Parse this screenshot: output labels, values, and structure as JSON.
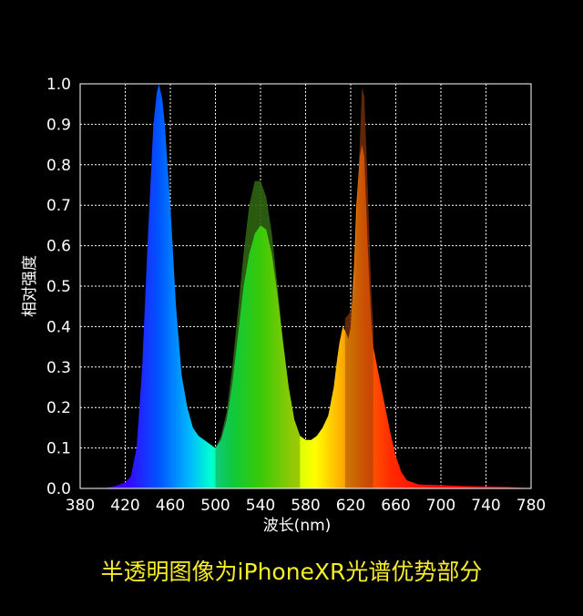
{
  "chart_data": {
    "type": "area",
    "title": "",
    "xlabel": "波长(nm)",
    "ylabel": "相对强度",
    "xlim": [
      380,
      780
    ],
    "ylim": [
      0.0,
      1.0
    ],
    "x_ticks": [
      "380",
      "420",
      "460",
      "500",
      "540",
      "580",
      "620",
      "660",
      "700",
      "740",
      "780"
    ],
    "y_ticks": [
      "0.0",
      "0.1",
      "0.2",
      "0.3",
      "0.4",
      "0.5",
      "0.6",
      "0.7",
      "0.8",
      "0.9",
      "1.0"
    ],
    "grid": true,
    "series": [
      {
        "x": [
          380,
          400,
          410,
          420,
          425,
          430,
          435,
          440,
          445,
          448,
          450,
          453,
          455,
          460,
          465,
          470,
          475,
          480,
          485,
          490,
          495,
          500,
          505,
          510,
          515,
          520,
          525,
          530,
          535,
          540,
          545,
          550,
          555,
          560,
          565,
          570,
          575,
          580,
          585,
          590,
          595,
          600,
          605,
          608,
          610,
          613,
          615,
          618,
          620,
          623,
          625,
          628,
          630,
          632,
          635,
          638,
          640,
          645,
          650,
          655,
          660,
          665,
          670,
          680,
          700,
          720,
          740,
          760,
          780
        ],
        "y": [
          0.0,
          0.0,
          0.005,
          0.015,
          0.03,
          0.1,
          0.3,
          0.62,
          0.9,
          0.98,
          1.0,
          0.96,
          0.9,
          0.7,
          0.45,
          0.28,
          0.2,
          0.15,
          0.13,
          0.12,
          0.11,
          0.1,
          0.12,
          0.17,
          0.26,
          0.38,
          0.5,
          0.58,
          0.63,
          0.65,
          0.64,
          0.58,
          0.48,
          0.36,
          0.25,
          0.17,
          0.13,
          0.12,
          0.12,
          0.13,
          0.15,
          0.18,
          0.25,
          0.32,
          0.36,
          0.4,
          0.39,
          0.37,
          0.4,
          0.55,
          0.7,
          0.82,
          0.85,
          0.82,
          0.6,
          0.42,
          0.35,
          0.28,
          0.21,
          0.14,
          0.08,
          0.04,
          0.02,
          0.01,
          0.008,
          0.006,
          0.005,
          0.004,
          0.0
        ]
      },
      {
        "x": [
          500,
          505,
          510,
          515,
          520,
          525,
          530,
          535,
          540,
          545,
          550,
          555,
          560,
          565,
          570,
          575
        ],
        "y": [
          0.1,
          0.13,
          0.19,
          0.3,
          0.44,
          0.58,
          0.7,
          0.76,
          0.76,
          0.72,
          0.63,
          0.5,
          0.36,
          0.25,
          0.17,
          0.13
        ]
      },
      {
        "x": [
          615,
          618,
          620,
          623,
          625,
          628,
          630,
          632,
          635,
          638,
          640
        ],
        "y": [
          0.42,
          0.43,
          0.44,
          0.5,
          0.65,
          0.85,
          0.99,
          0.97,
          0.75,
          0.5,
          0.4
        ]
      }
    ]
  },
  "caption": "半透明图像为iPhoneXR光谱优势部分"
}
